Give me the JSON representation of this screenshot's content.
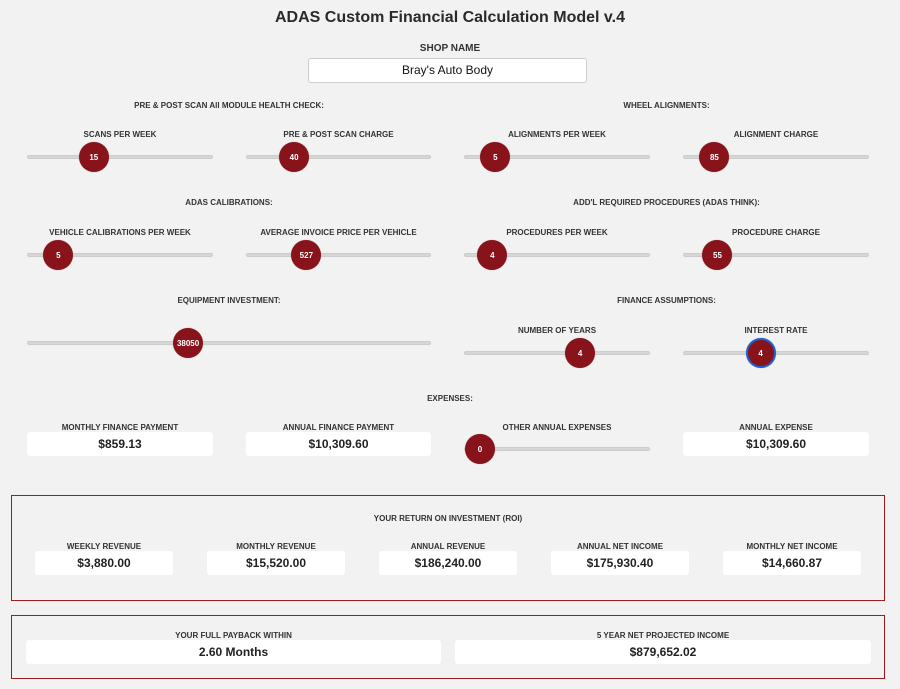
{
  "title": "ADAS Custom Financial Calculation Model v.4",
  "shop": {
    "label": "SHOP NAME",
    "value": "Bray's Auto Body"
  },
  "sections": {
    "scan": "PRE & POST SCAN All MODULE HEALTH CHECK:",
    "wheel": "WHEEL ALIGNMENTS:",
    "adas": "ADAS CALIBRATIONS:",
    "procedures": "ADD'L REQUIRED PROCEDURES (ADAS THINK):",
    "equipment": "EQUIPMENT INVESTMENT:",
    "finance": "FINANCE ASSUMPTIONS:",
    "expenses": "EXPENSES:"
  },
  "sliders": {
    "scans": {
      "label": "SCANS PER WEEK",
      "value": "15",
      "position": 0.33
    },
    "scan_charge": {
      "label": "PRE & POST SCAN CHARGE",
      "value": "40",
      "position": 0.21
    },
    "alignments": {
      "label": "ALIGNMENTS PER WEEK",
      "value": "5",
      "position": 0.1
    },
    "alignment_charge": {
      "label": "ALIGNMENT CHARGE",
      "value": "85",
      "position": 0.1
    },
    "calibrations": {
      "label": "VEHICLE CALIBRATIONS PER WEEK",
      "value": "5",
      "position": 0.1
    },
    "invoice": {
      "label": "AVERAGE INVOICE PRICE PER VEHICLE",
      "value": "527",
      "position": 0.29
    },
    "procedures": {
      "label": "PROCEDURES PER WEEK",
      "value": "4",
      "position": 0.08
    },
    "procedure_charge": {
      "label": "PROCEDURE CHARGE",
      "value": "55",
      "position": 0.12
    },
    "equipment": {
      "label": "",
      "value": "38050",
      "position": 0.39
    },
    "years": {
      "label": "NUMBER OF YEARS",
      "value": "4",
      "position": 0.65
    },
    "rate": {
      "label": "INTEREST RATE",
      "value": "4",
      "position": 0.4
    },
    "other_expenses": {
      "label": "OTHER ANNUAL EXPENSES",
      "value": "0",
      "position": 0.0
    }
  },
  "expenses": {
    "monthly_payment": {
      "label": "MONTHLY FINANCE PAYMENT",
      "value": "$859.13"
    },
    "annual_payment": {
      "label": "ANNUAL FINANCE PAYMENT",
      "value": "$10,309.60"
    },
    "annual_expense": {
      "label": "ANNUAL EXPENSE",
      "value": "$10,309.60"
    }
  },
  "roi": {
    "title": "YOUR RETURN ON INVESTMENT (ROI)",
    "items": [
      {
        "label": "WEEKLY REVENUE",
        "value": "$3,880.00"
      },
      {
        "label": "MONTHLY REVENUE",
        "value": "$15,520.00"
      },
      {
        "label": "ANNUAL REVENUE",
        "value": "$186,240.00"
      },
      {
        "label": "ANNUAL NET INCOME",
        "value": "$175,930.40"
      },
      {
        "label": "MONTHLY NET INCOME",
        "value": "$14,660.87"
      }
    ]
  },
  "payback": {
    "label": "YOUR FULL PAYBACK WITHIN",
    "value": "2.60 Months"
  },
  "projected": {
    "label": "5 YEAR NET PROJECTED INCOME",
    "value": "$879,652.02"
  },
  "colors": {
    "accent": "#88131a",
    "focus": "#1f5fd6",
    "background": "#f2f2f2"
  }
}
